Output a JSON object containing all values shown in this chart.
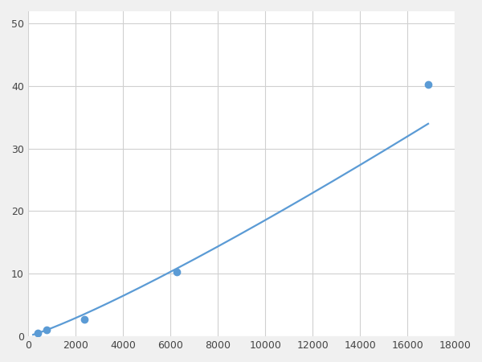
{
  "x_points": [
    390,
    780,
    2344,
    6250,
    16875
  ],
  "y_points": [
    0.5,
    1.0,
    2.6,
    10.2,
    40.3
  ],
  "line_color": "#5b9bd5",
  "marker_color": "#5b9bd5",
  "marker_size": 6,
  "linewidth": 1.6,
  "xlim": [
    0,
    18000
  ],
  "ylim": [
    0,
    52
  ],
  "xticks": [
    0,
    2000,
    4000,
    6000,
    8000,
    10000,
    12000,
    14000,
    16000,
    18000
  ],
  "yticks": [
    0,
    10,
    20,
    30,
    40,
    50
  ],
  "grid_color": "#d0d0d0",
  "background_color": "#ffffff",
  "figure_bg": "#f0f0f0"
}
